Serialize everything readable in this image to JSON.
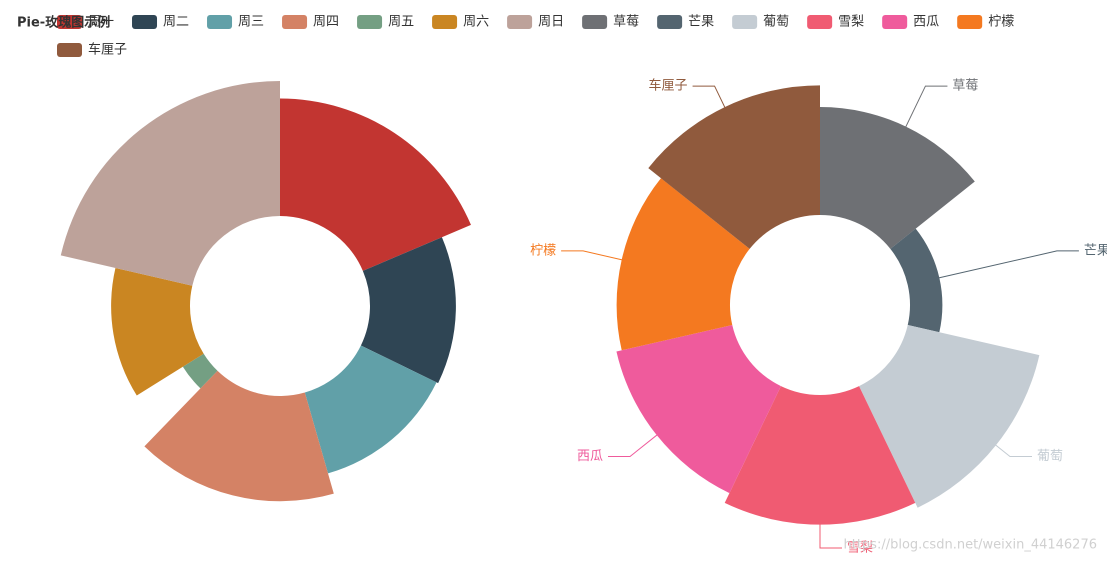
{
  "title": "Pie-玫瑰图示例",
  "watermark": "https://blog.csdn.net/weixin_44146276",
  "chart_data": [
    {
      "type": "pie",
      "rose": "radius",
      "categories": [
        "周一",
        "周二",
        "周三",
        "周四",
        "周五",
        "周六",
        "周日"
      ],
      "values": [
        67,
        49,
        48,
        60,
        14,
        45,
        77
      ],
      "colors": [
        "#c23531",
        "#2f4554",
        "#61a0a8",
        "#d48265",
        "#749f83",
        "#ca8622",
        "#bda29a"
      ],
      "labels": false
    },
    {
      "type": "pie",
      "rose": "area",
      "categories": [
        "草莓",
        "芒果",
        "葡萄",
        "雪梨",
        "西瓜",
        "柠檬",
        "车厘子"
      ],
      "values": [
        20,
        6,
        25,
        24,
        22,
        21,
        24
      ],
      "colors": [
        "#6e7074",
        "#546570",
        "#c4ccd3",
        "#f05b72",
        "#ef5b9c",
        "#f47920",
        "#905a3d"
      ],
      "labels": true
    }
  ]
}
